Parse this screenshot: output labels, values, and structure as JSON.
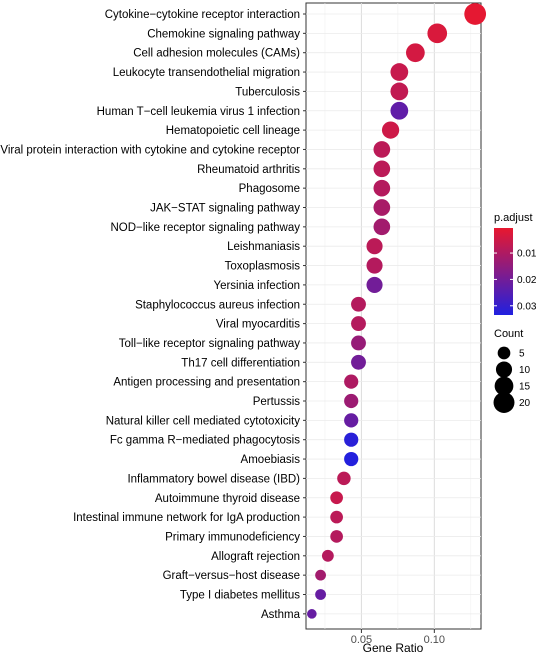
{
  "chart_data": {
    "type": "scatter",
    "xlabel": "Gene Ratio",
    "xlim": [
      0.012,
      0.132
    ],
    "x_ticks": [
      {
        "value": 0.05,
        "label": "0.05"
      },
      {
        "value": 0.1,
        "label": "0.10"
      }
    ],
    "grid": true,
    "color_colors": {
      "low": "#e8182f",
      "high": "#2020e0"
    },
    "color_legend": {
      "title": "p.adjust",
      "range": [
        0.0005,
        0.0335
      ],
      "ticks": [
        {
          "value": 0.01,
          "label": "0.01"
        },
        {
          "value": 0.02,
          "label": "0.02"
        },
        {
          "value": 0.03,
          "label": "0.03"
        }
      ]
    },
    "size_legend": {
      "title": "Count",
      "values": [
        {
          "value": 5,
          "label": "5"
        },
        {
          "value": 10,
          "label": "10"
        },
        {
          "value": 15,
          "label": "15"
        },
        {
          "value": 20,
          "label": "20"
        }
      ]
    },
    "points": [
      {
        "category": "Cytokine−cytokine receptor interaction",
        "x": 0.128,
        "count": 22,
        "p": 0.001
      },
      {
        "category": "Chemokine signaling pathway",
        "x": 0.102,
        "count": 17,
        "p": 0.003
      },
      {
        "category": "Cell adhesion molecules (CAMs)",
        "x": 0.087,
        "count": 15,
        "p": 0.004
      },
      {
        "category": "Leukocyte transendothelial migration",
        "x": 0.076,
        "count": 13,
        "p": 0.006
      },
      {
        "category": "Tuberculosis",
        "x": 0.076,
        "count": 13,
        "p": 0.007
      },
      {
        "category": "Human T−cell leukemia virus 1 infection",
        "x": 0.076,
        "count": 13,
        "p": 0.023
      },
      {
        "category": "Hematopoietic cell lineage",
        "x": 0.07,
        "count": 12,
        "p": 0.005
      },
      {
        "category": "Viral protein interaction with cytokine and cytokine receptor",
        "x": 0.064,
        "count": 11,
        "p": 0.008
      },
      {
        "category": "Rheumatoid arthritis",
        "x": 0.064,
        "count": 11,
        "p": 0.008
      },
      {
        "category": "Phagosome",
        "x": 0.064,
        "count": 11,
        "p": 0.009
      },
      {
        "category": "JAK−STAT signaling pathway",
        "x": 0.064,
        "count": 11,
        "p": 0.011
      },
      {
        "category": "NOD−like receptor signaling pathway",
        "x": 0.064,
        "count": 11,
        "p": 0.012
      },
      {
        "category": "Leishmaniasis",
        "x": 0.059,
        "count": 10,
        "p": 0.008
      },
      {
        "category": "Toxoplasmosis",
        "x": 0.059,
        "count": 10,
        "p": 0.009
      },
      {
        "category": "Yersinia infection",
        "x": 0.059,
        "count": 10,
        "p": 0.02
      },
      {
        "category": "Staphylococcus aureus infection",
        "x": 0.048,
        "count": 8,
        "p": 0.009
      },
      {
        "category": "Viral myocarditis",
        "x": 0.048,
        "count": 8,
        "p": 0.009
      },
      {
        "category": "Toll−like receptor signaling pathway",
        "x": 0.048,
        "count": 8,
        "p": 0.014
      },
      {
        "category": "Th17 cell differentiation",
        "x": 0.048,
        "count": 8,
        "p": 0.02
      },
      {
        "category": "Antigen processing and presentation",
        "x": 0.043,
        "count": 7,
        "p": 0.01
      },
      {
        "category": "Pertussis",
        "x": 0.043,
        "count": 7,
        "p": 0.013
      },
      {
        "category": "Natural killer cell mediated cytotoxicity",
        "x": 0.043,
        "count": 7,
        "p": 0.022
      },
      {
        "category": "Fc gamma R−mediated phagocytosis",
        "x": 0.043,
        "count": 7,
        "p": 0.032
      },
      {
        "category": "Amoebiasis",
        "x": 0.043,
        "count": 7,
        "p": 0.033
      },
      {
        "category": "Inflammatory bowel disease (IBD)",
        "x": 0.038,
        "count": 6,
        "p": 0.008
      },
      {
        "category": "Autoimmune thyroid disease",
        "x": 0.033,
        "count": 5,
        "p": 0.006
      },
      {
        "category": "Intestinal immune network for IgA production",
        "x": 0.033,
        "count": 5,
        "p": 0.008
      },
      {
        "category": "Primary immunodeficiency",
        "x": 0.033,
        "count": 5,
        "p": 0.009
      },
      {
        "category": "Allograft rejection",
        "x": 0.027,
        "count": 4,
        "p": 0.009
      },
      {
        "category": "Graft−versus−host disease",
        "x": 0.022,
        "count": 3,
        "p": 0.012
      },
      {
        "category": "Type I diabetes mellitus",
        "x": 0.022,
        "count": 3,
        "p": 0.022
      },
      {
        "category": "Asthma",
        "x": 0.016,
        "count": 2,
        "p": 0.022
      }
    ]
  }
}
